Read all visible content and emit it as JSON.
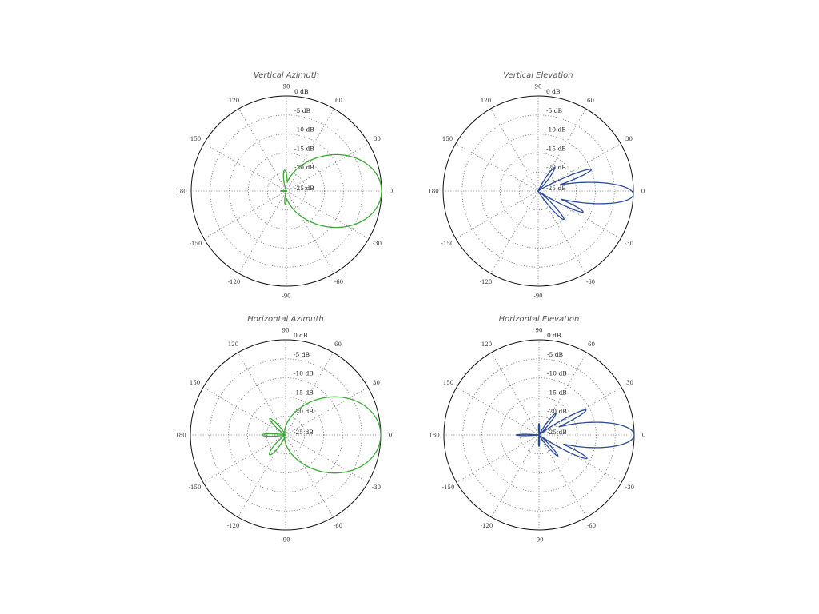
{
  "chart_data": [
    {
      "type": "polar",
      "title": "Vertical Azimuth",
      "color": "#3aaa35",
      "r_range_db": [
        -25,
        0
      ],
      "db_labels": [
        "0 dB",
        "-5 dB",
        "-10 dB",
        "-15 dB",
        "-20 dB",
        "-25 dB"
      ],
      "angle_labels": [
        {
          "angle": 0,
          "label": "0"
        },
        {
          "angle": 30,
          "label": "30"
        },
        {
          "angle": 60,
          "label": "60"
        },
        {
          "angle": 90,
          "label": "90"
        },
        {
          "angle": 120,
          "label": "120"
        },
        {
          "angle": 150,
          "label": "150"
        },
        {
          "angle": 180,
          "label": "180"
        },
        {
          "angle": -150,
          "label": "-150"
        },
        {
          "angle": -120,
          "label": "-120"
        },
        {
          "angle": -90,
          "label": "-90"
        },
        {
          "angle": -60,
          "label": "-60"
        },
        {
          "angle": -30,
          "label": "-30"
        }
      ],
      "lobes": [
        {
          "angle": 0,
          "peak_db": 0,
          "width_deg": 55
        },
        {
          "angle": 95,
          "peak_db": -19.5,
          "width_deg": 11
        },
        {
          "angle": -95,
          "peak_db": -21.5,
          "width_deg": 9
        },
        {
          "angle": 180,
          "peak_db": -23.5,
          "width_deg": 8
        }
      ]
    },
    {
      "type": "polar",
      "title": "Vertical Elevation",
      "color": "#2b4a9a",
      "r_range_db": [
        -25,
        0
      ],
      "db_labels": [
        "0 dB",
        "-5 dB",
        "-10 dB",
        "-15 dB",
        "-20 dB",
        "-25 dB"
      ],
      "angle_labels": [
        {
          "angle": 0,
          "label": "0"
        },
        {
          "angle": 30,
          "label": "30"
        },
        {
          "angle": 60,
          "label": "60"
        },
        {
          "angle": 90,
          "label": "90"
        },
        {
          "angle": 120,
          "label": "120"
        },
        {
          "angle": 150,
          "label": "150"
        },
        {
          "angle": 180,
          "label": "180"
        },
        {
          "angle": -150,
          "label": "-150"
        },
        {
          "angle": -120,
          "label": "-120"
        },
        {
          "angle": -90,
          "label": "-90"
        },
        {
          "angle": -60,
          "label": "-60"
        },
        {
          "angle": -30,
          "label": "-30"
        }
      ],
      "lobes": [
        {
          "angle": -2,
          "peak_db": 0,
          "width_deg": 15
        },
        {
          "angle": 22,
          "peak_db": -10,
          "width_deg": 6
        },
        {
          "angle": 55,
          "peak_db": -17.5,
          "width_deg": 7
        },
        {
          "angle": -25,
          "peak_db": -12,
          "width_deg": 6
        },
        {
          "angle": -48,
          "peak_db": -15,
          "width_deg": 7
        }
      ]
    },
    {
      "type": "polar",
      "title": "Horizontal Azimuth",
      "color": "#3aaa35",
      "r_range_db": [
        -25,
        0
      ],
      "db_labels": [
        "0 dB",
        "-5 dB",
        "-10 dB",
        "-15 dB",
        "-20 dB",
        "-25 dB"
      ],
      "angle_labels": [
        {
          "angle": 0,
          "label": "0"
        },
        {
          "angle": 30,
          "label": "30"
        },
        {
          "angle": 60,
          "label": "60"
        },
        {
          "angle": 90,
          "label": "90"
        },
        {
          "angle": 120,
          "label": "120"
        },
        {
          "angle": 150,
          "label": "150"
        },
        {
          "angle": 180,
          "label": "180"
        },
        {
          "angle": -150,
          "label": "-150"
        },
        {
          "angle": -120,
          "label": "-120"
        },
        {
          "angle": -90,
          "label": "-90"
        },
        {
          "angle": -60,
          "label": "-60"
        },
        {
          "angle": -30,
          "label": "-30"
        }
      ],
      "lobes": [
        {
          "angle": 0,
          "peak_db": 0,
          "width_deg": 58
        },
        {
          "angle": 134,
          "peak_db": -19,
          "width_deg": 9
        },
        {
          "angle": 180,
          "peak_db": -18.7,
          "width_deg": 7
        },
        {
          "angle": -129,
          "peak_db": -18.3,
          "width_deg": 12
        }
      ]
    },
    {
      "type": "polar",
      "title": "Horizontal Elevation",
      "color": "#2b4a9a",
      "r_range_db": [
        -25,
        0
      ],
      "db_labels": [
        "0 dB",
        "-5 dB",
        "-10 dB",
        "-15 dB",
        "-20 dB",
        "-25 dB"
      ],
      "angle_labels": [
        {
          "angle": 0,
          "label": "0"
        },
        {
          "angle": 30,
          "label": "30"
        },
        {
          "angle": 60,
          "label": "60"
        },
        {
          "angle": 90,
          "label": "90"
        },
        {
          "angle": 120,
          "label": "120"
        },
        {
          "angle": 150,
          "label": "150"
        },
        {
          "angle": 180,
          "label": "180"
        },
        {
          "angle": -150,
          "label": "-150"
        },
        {
          "angle": -120,
          "label": "-120"
        },
        {
          "angle": -90,
          "label": "-90"
        },
        {
          "angle": -60,
          "label": "-60"
        },
        {
          "angle": -30,
          "label": "-30"
        }
      ],
      "lobes": [
        {
          "angle": 0,
          "peak_db": 0,
          "width_deg": 18
        },
        {
          "angle": 28,
          "peak_db": -11,
          "width_deg": 6
        },
        {
          "angle": 52,
          "peak_db": -17.8,
          "width_deg": 6
        },
        {
          "angle": -26,
          "peak_db": -11,
          "width_deg": 6
        },
        {
          "angle": -48,
          "peak_db": -17.6,
          "width_deg": 6
        },
        {
          "angle": 90,
          "peak_db": -22,
          "width_deg": 6
        },
        {
          "angle": -90,
          "peak_db": -22,
          "width_deg": 6
        },
        {
          "angle": 180,
          "peak_db": -19,
          "width_deg": 4
        }
      ]
    }
  ]
}
